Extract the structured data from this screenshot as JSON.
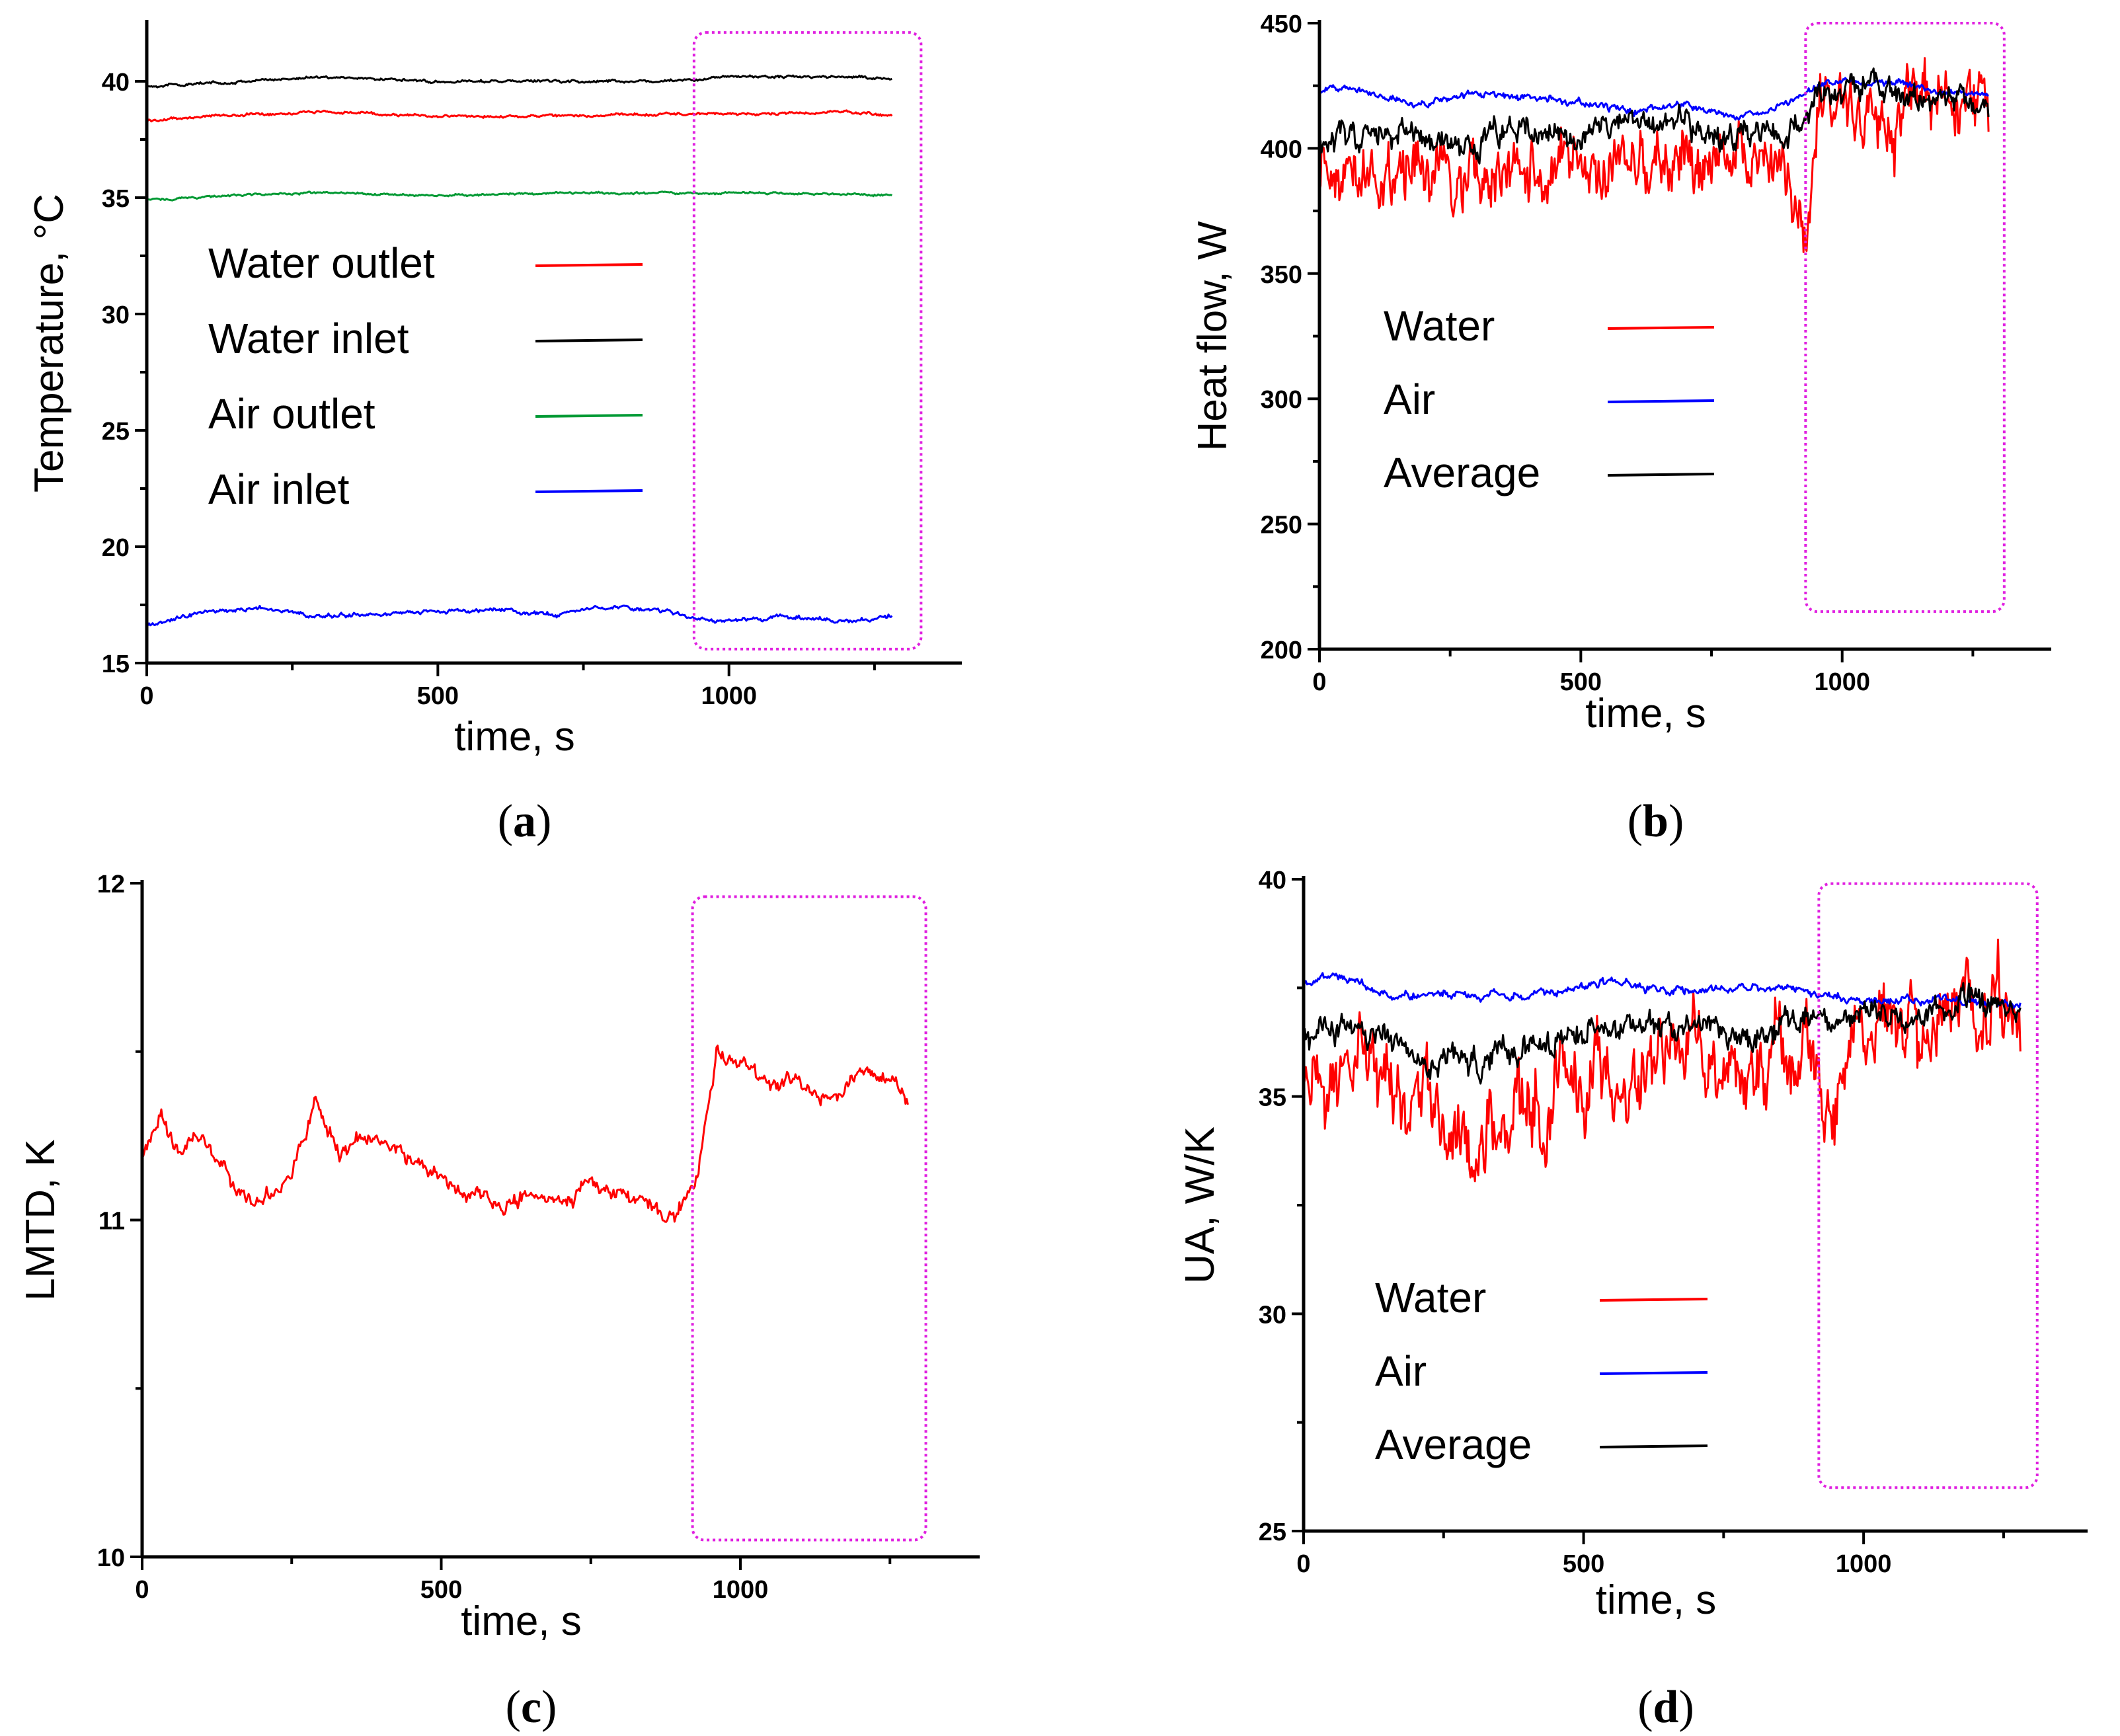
{
  "chart_data": [
    {
      "id": "a",
      "type": "line",
      "panel_label": "a",
      "xlabel": "time, s",
      "ylabel": "Temperature, °C",
      "xlim": [
        0,
        1400
      ],
      "ylim": [
        15,
        42.5
      ],
      "xticks": [
        0,
        500,
        1000
      ],
      "yticks": [
        15,
        20,
        25,
        30,
        35,
        40
      ],
      "highlight_range": {
        "x": [
          940,
          1330
        ],
        "y": [
          15.6,
          42.1
        ]
      },
      "legend_position": "center-left",
      "series": [
        {
          "name": "Water outlet",
          "color": "#ff0000",
          "baseline": 38.5,
          "noise": 0.06,
          "knots": [
            [
              0,
              38.3
            ],
            [
              100,
              38.5
            ],
            [
              300,
              38.7
            ],
            [
              500,
              38.5
            ],
            [
              700,
              38.5
            ],
            [
              900,
              38.6
            ],
            [
              1100,
              38.6
            ],
            [
              1200,
              38.7
            ],
            [
              1280,
              38.5
            ]
          ]
        },
        {
          "name": "Water inlet",
          "color": "#000000",
          "baseline": 40.0,
          "noise": 0.06,
          "knots": [
            [
              0,
              39.8
            ],
            [
              100,
              39.9
            ],
            [
              300,
              40.2
            ],
            [
              500,
              40.0
            ],
            [
              700,
              40.0
            ],
            [
              900,
              40.0
            ],
            [
              1000,
              40.2
            ],
            [
              1200,
              40.2
            ],
            [
              1280,
              40.1
            ]
          ]
        },
        {
          "name": "Air outlet",
          "color": "#009933",
          "baseline": 35.1,
          "noise": 0.05,
          "knots": [
            [
              0,
              34.9
            ],
            [
              150,
              35.1
            ],
            [
              300,
              35.2
            ],
            [
              500,
              35.1
            ],
            [
              700,
              35.2
            ],
            [
              900,
              35.2
            ],
            [
              1100,
              35.2
            ],
            [
              1280,
              35.1
            ]
          ]
        },
        {
          "name": "Air inlet",
          "color": "#0000ff",
          "baseline": 17.0,
          "noise": 0.1,
          "knots": [
            [
              0,
              16.6
            ],
            [
              100,
              17.2
            ],
            [
              200,
              17.4
            ],
            [
              300,
              17.0
            ],
            [
              500,
              17.2
            ],
            [
              600,
              17.3
            ],
            [
              700,
              17.1
            ],
            [
              800,
              17.4
            ],
            [
              900,
              17.2
            ],
            [
              950,
              16.9
            ],
            [
              1000,
              16.8
            ],
            [
              1100,
              17.0
            ],
            [
              1200,
              16.8
            ],
            [
              1280,
              17.0
            ]
          ]
        }
      ]
    },
    {
      "id": "b",
      "type": "line",
      "panel_label": "b",
      "xlabel": "time, s",
      "ylabel": "Heat flow, W",
      "xlim": [
        0,
        1400
      ],
      "ylim": [
        200,
        450
      ],
      "xticks": [
        0,
        500,
        1000
      ],
      "yticks": [
        200,
        250,
        300,
        350,
        400,
        450
      ],
      "highlight_range": {
        "x": [
          930,
          1310
        ],
        "y": [
          215,
          450
        ]
      },
      "legend_position": "center-left",
      "series": [
        {
          "name": "Water",
          "color": "#ff0000",
          "noise": 14,
          "knots": [
            [
              0,
              395
            ],
            [
              100,
              392
            ],
            [
              250,
              388
            ],
            [
              350,
              385
            ],
            [
              450,
              392
            ],
            [
              550,
              388
            ],
            [
              650,
              398
            ],
            [
              800,
              393
            ],
            [
              900,
              395
            ],
            [
              930,
              360
            ],
            [
              960,
              410
            ],
            [
              1100,
              415
            ],
            [
              1200,
              420
            ],
            [
              1280,
              418
            ]
          ]
        },
        {
          "name": "Air",
          "color": "#0000ff",
          "noise": 1.5,
          "knots": [
            [
              0,
              422
            ],
            [
              50,
              426
            ],
            [
              150,
              419
            ],
            [
              200,
              418
            ],
            [
              300,
              422
            ],
            [
              400,
              420
            ],
            [
              500,
              418
            ],
            [
              600,
              415
            ],
            [
              700,
              417
            ],
            [
              800,
              412
            ],
            [
              900,
              418
            ],
            [
              950,
              425
            ],
            [
              1000,
              428
            ],
            [
              1100,
              426
            ],
            [
              1200,
              422
            ],
            [
              1280,
              421
            ]
          ]
        },
        {
          "name": "Average",
          "color": "#000000",
          "noise": 6,
          "knots": [
            [
              0,
              405
            ],
            [
              100,
              405
            ],
            [
              200,
              403
            ],
            [
              300,
              402
            ],
            [
              400,
              408
            ],
            [
              500,
              405
            ],
            [
              600,
              408
            ],
            [
              700,
              410
            ],
            [
              800,
              405
            ],
            [
              900,
              408
            ],
            [
              950,
              420
            ],
            [
              1050,
              425
            ],
            [
              1150,
              420
            ],
            [
              1280,
              418
            ]
          ]
        }
      ]
    },
    {
      "id": "c",
      "type": "line",
      "panel_label": "c",
      "xlabel": "time, s",
      "ylabel": "LMTD, K",
      "xlim": [
        0,
        1400
      ],
      "ylim": [
        10,
        12
      ],
      "xticks": [
        0,
        500,
        1000
      ],
      "yticks": [
        10,
        11,
        12
      ],
      "highlight_range": {
        "x": [
          920,
          1310
        ],
        "y": [
          10.05,
          11.96
        ]
      },
      "legend_position": "none",
      "series": [
        {
          "name": "LMTD",
          "color": "#ff0000",
          "noise": 0.025,
          "knots": [
            [
              0,
              11.2
            ],
            [
              30,
              11.3
            ],
            [
              60,
              11.2
            ],
            [
              100,
              11.25
            ],
            [
              150,
              11.1
            ],
            [
              200,
              11.05
            ],
            [
              250,
              11.15
            ],
            [
              290,
              11.35
            ],
            [
              330,
              11.2
            ],
            [
              380,
              11.25
            ],
            [
              430,
              11.2
            ],
            [
              500,
              11.12
            ],
            [
              550,
              11.08
            ],
            [
              600,
              11.05
            ],
            [
              650,
              11.08
            ],
            [
              700,
              11.05
            ],
            [
              750,
              11.1
            ],
            [
              800,
              11.08
            ],
            [
              850,
              11.05
            ],
            [
              890,
              11.0
            ],
            [
              930,
              11.15
            ],
            [
              960,
              11.5
            ],
            [
              1000,
              11.45
            ],
            [
              1050,
              11.4
            ],
            [
              1100,
              11.42
            ],
            [
              1150,
              11.35
            ],
            [
              1200,
              11.45
            ],
            [
              1250,
              11.42
            ],
            [
              1280,
              11.35
            ]
          ]
        }
      ]
    },
    {
      "id": "d",
      "type": "line",
      "panel_label": "d",
      "xlabel": "time, s",
      "ylabel": "UA, W/K",
      "xlim": [
        0,
        1400
      ],
      "ylim": [
        25,
        40
      ],
      "xticks": [
        0,
        500,
        1000
      ],
      "yticks": [
        25,
        30,
        35,
        40
      ],
      "highlight_range": {
        "x": [
          920,
          1310
        ],
        "y": [
          26.0,
          39.9
        ]
      },
      "legend_position": "bottom-left",
      "series": [
        {
          "name": "Water",
          "color": "#ff0000",
          "noise": 1.0,
          "knots": [
            [
              0,
              35.0
            ],
            [
              100,
              35.5
            ],
            [
              200,
              34.8
            ],
            [
              300,
              34.2
            ],
            [
              400,
              34.8
            ],
            [
              500,
              35.2
            ],
            [
              600,
              35.8
            ],
            [
              700,
              36.2
            ],
            [
              800,
              35.6
            ],
            [
              900,
              36.2
            ],
            [
              930,
              35.0
            ],
            [
              1000,
              36.5
            ],
            [
              1100,
              36.6
            ],
            [
              1200,
              37.2
            ],
            [
              1280,
              36.8
            ]
          ]
        },
        {
          "name": "Air",
          "color": "#0000ff",
          "noise": 0.1,
          "knots": [
            [
              0,
              37.6
            ],
            [
              50,
              37.8
            ],
            [
              150,
              37.3
            ],
            [
              250,
              37.4
            ],
            [
              350,
              37.3
            ],
            [
              450,
              37.4
            ],
            [
              550,
              37.7
            ],
            [
              650,
              37.4
            ],
            [
              750,
              37.5
            ],
            [
              850,
              37.5
            ],
            [
              950,
              37.3
            ],
            [
              1050,
              37.2
            ],
            [
              1150,
              37.2
            ],
            [
              1280,
              37.1
            ]
          ]
        },
        {
          "name": "Average",
          "color": "#000000",
          "noise": 0.35,
          "knots": [
            [
              0,
              36.3
            ],
            [
              100,
              36.5
            ],
            [
              200,
              36.0
            ],
            [
              300,
              35.8
            ],
            [
              400,
              36.3
            ],
            [
              500,
              36.5
            ],
            [
              600,
              36.7
            ],
            [
              700,
              36.6
            ],
            [
              800,
              36.4
            ],
            [
              900,
              36.7
            ],
            [
              1000,
              36.8
            ],
            [
              1100,
              36.7
            ],
            [
              1200,
              37.4
            ],
            [
              1280,
              37.0
            ]
          ]
        }
      ]
    }
  ]
}
